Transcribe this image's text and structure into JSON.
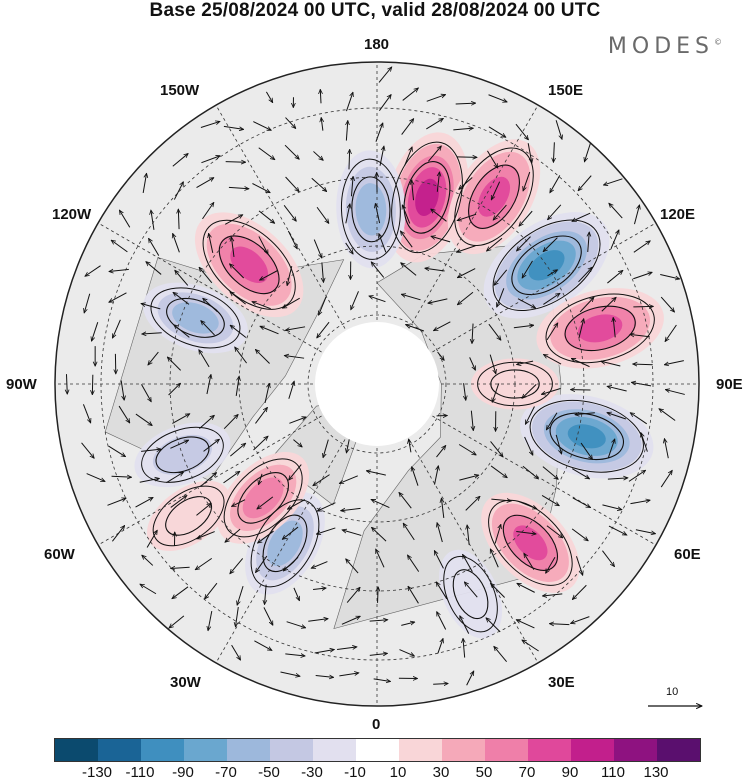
{
  "title": "Base 25/08/2024 00 UTC, valid 28/08/2024 00 UTC",
  "brand": "MODES",
  "brand_mark": "©",
  "lon_labels": {
    "l180": "180",
    "l150w": "150W",
    "l150e": "150E",
    "l120w": "120W",
    "l120e": "120E",
    "l90w": "90W",
    "l90e": "90E",
    "l60w": "60W",
    "l60e": "60E",
    "l30w": "30W",
    "l30e": "30E",
    "l0": "0"
  },
  "colorbar": {
    "colors": [
      "#0b4a6e",
      "#1a6496",
      "#3f8fbf",
      "#6aa7cf",
      "#9db8dc",
      "#c4c8e3",
      "#e2e0ef",
      "#ffffff",
      "#f9d6d8",
      "#f5a9b9",
      "#ef7fa9",
      "#e0489b",
      "#c21f8c",
      "#8e1280",
      "#5a0f6e"
    ],
    "ticks": [
      "-130",
      "-110",
      "-90",
      "-70",
      "-50",
      "-30",
      "-10",
      "10",
      "30",
      "50",
      "70",
      "90",
      "110",
      "130"
    ]
  },
  "reference_vector": {
    "value": "10"
  },
  "anomalies": [
    {
      "lon": 165,
      "lat": 48,
      "value": 95
    },
    {
      "lon": 182,
      "lat": 52,
      "value": -70
    },
    {
      "lon": 148,
      "lat": 42,
      "value": 85
    },
    {
      "lon": 125,
      "lat": 45,
      "value": -110
    },
    {
      "lon": 104,
      "lat": 40,
      "value": 90
    },
    {
      "lon": 76,
      "lat": 43,
      "value": -100
    },
    {
      "lon": 44,
      "lat": 42,
      "value": 75
    },
    {
      "lon": 24,
      "lat": 40,
      "value": -30
    },
    {
      "lon": -30,
      "lat": 50,
      "value": -60
    },
    {
      "lon": -45,
      "lat": 55,
      "value": 60
    },
    {
      "lon": -70,
      "lat": 45,
      "value": -40
    },
    {
      "lon": -110,
      "lat": 48,
      "value": -55
    },
    {
      "lon": -133,
      "lat": 52,
      "value": 90
    },
    {
      "lon": -55,
      "lat": 40,
      "value": 30
    },
    {
      "lon": 90,
      "lat": 60,
      "value": 20
    }
  ]
}
